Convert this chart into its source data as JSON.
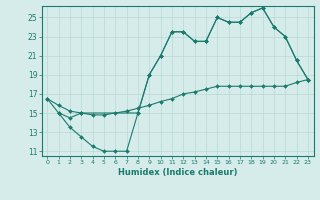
{
  "xlabel": "Humidex (Indice chaleur)",
  "bg_color": "#d6ecea",
  "grid_color": "#b8d8d4",
  "line_color": "#1a7a6e",
  "xlim": [
    -0.5,
    23.5
  ],
  "ylim": [
    10.5,
    26.2
  ],
  "xticks": [
    0,
    1,
    2,
    3,
    4,
    5,
    6,
    7,
    8,
    9,
    10,
    11,
    12,
    13,
    14,
    15,
    16,
    17,
    18,
    19,
    20,
    21,
    22,
    23
  ],
  "yticks": [
    11,
    13,
    15,
    17,
    19,
    21,
    23,
    25
  ],
  "series": [
    {
      "x": [
        0,
        1,
        2,
        3,
        4,
        5,
        6,
        7,
        8,
        9,
        10,
        11,
        12,
        13,
        14,
        15,
        16,
        17,
        18,
        19,
        20,
        21,
        22,
        23
      ],
      "y": [
        16.5,
        15.8,
        15.2,
        15.0,
        14.8,
        14.8,
        15.0,
        15.2,
        15.5,
        15.8,
        16.2,
        16.5,
        17.0,
        17.2,
        17.5,
        17.8,
        17.8,
        17.8,
        17.8,
        17.8,
        17.8,
        17.8,
        18.2,
        18.5
      ]
    },
    {
      "x": [
        0,
        1,
        2,
        3,
        8,
        9,
        10,
        11,
        12,
        13,
        14,
        15,
        16,
        17,
        18,
        19,
        20,
        21,
        22,
        23
      ],
      "y": [
        16.5,
        15.0,
        14.5,
        15.0,
        15.0,
        19.0,
        21.0,
        23.5,
        23.5,
        22.5,
        22.5,
        25.0,
        24.5,
        24.5,
        25.5,
        26.0,
        24.0,
        23.0,
        20.5,
        18.5
      ]
    },
    {
      "x": [
        1,
        2,
        3,
        4,
        5,
        6,
        7,
        8,
        9,
        10,
        11,
        12,
        13,
        14,
        15,
        16,
        17,
        18,
        19,
        20,
        21,
        22,
        23
      ],
      "y": [
        15.0,
        13.5,
        12.5,
        11.5,
        11.0,
        11.0,
        11.0,
        15.0,
        19.0,
        21.0,
        23.5,
        23.5,
        22.5,
        22.5,
        25.0,
        24.5,
        24.5,
        25.5,
        26.0,
        24.0,
        23.0,
        20.5,
        18.5
      ]
    }
  ]
}
